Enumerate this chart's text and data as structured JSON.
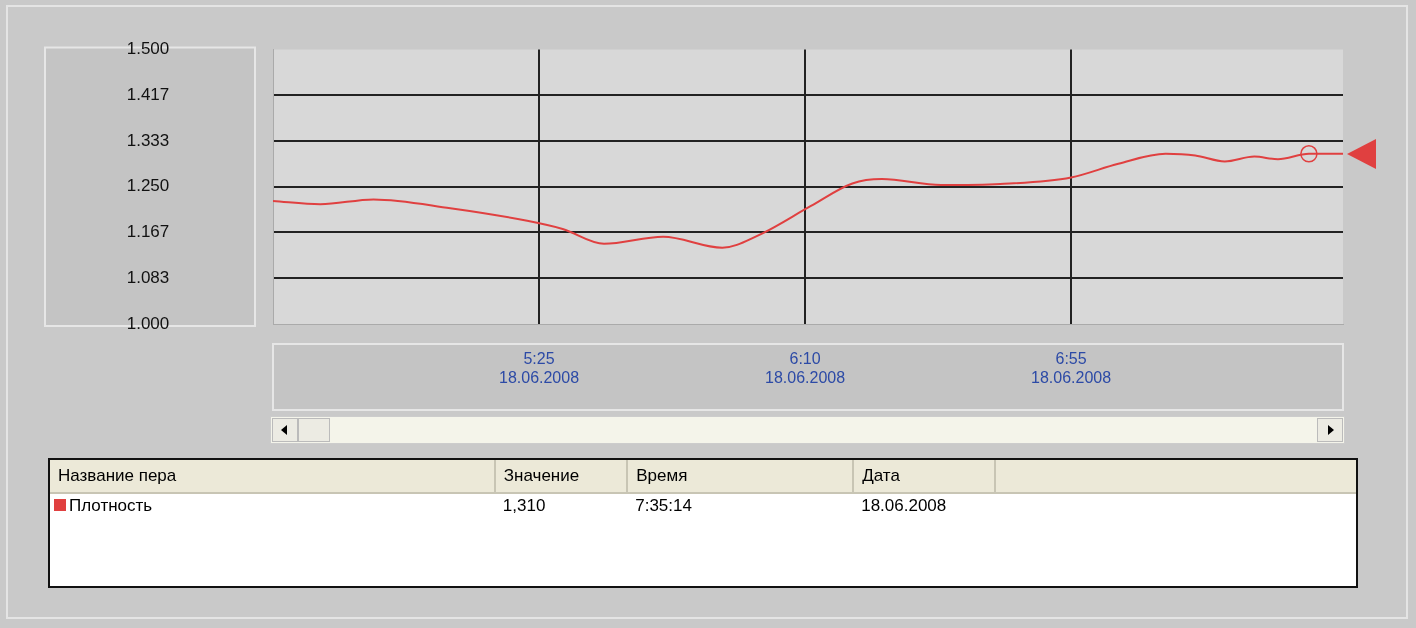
{
  "chart_data": {
    "type": "line",
    "x": [
      "2008-06-18T04:40",
      "2008-06-18T04:48",
      "2008-06-18T04:57",
      "2008-06-18T05:10",
      "2008-06-18T05:23",
      "2008-06-18T05:29",
      "2008-06-18T05:36",
      "2008-06-18T05:46",
      "2008-06-18T05:56",
      "2008-06-18T06:02",
      "2008-06-18T06:11",
      "2008-06-18T06:18",
      "2008-06-18T06:23",
      "2008-06-18T06:33",
      "2008-06-18T06:43",
      "2008-06-18T06:55",
      "2008-06-18T07:03",
      "2008-06-18T07:11",
      "2008-06-18T07:16",
      "2008-06-18T07:21",
      "2008-06-18T07:26",
      "2008-06-18T07:30",
      "2008-06-18T07:35:14",
      "2008-06-18T07:41"
    ],
    "series": [
      {
        "name": "Плотность",
        "color": "#e04040",
        "values": [
          1.224,
          1.218,
          1.227,
          1.211,
          1.188,
          1.173,
          1.146,
          1.159,
          1.139,
          1.161,
          1.215,
          1.256,
          1.264,
          1.253,
          1.255,
          1.267,
          1.292,
          1.31,
          1.307,
          1.296,
          1.305,
          1.3,
          1.31,
          1.31
        ]
      },
      {
        "type": "scatter",
        "color": "#e04040",
        "marker": "circle",
        "x": [
          "2008-06-18T07:35:14"
        ],
        "values": [
          1.31
        ]
      }
    ],
    "xlim": [
      "2008-06-18T04:40",
      "2008-06-18T07:41"
    ],
    "xticks": [
      {
        "value": "2008-06-18T05:25",
        "label": "5:25\n18.06.2008"
      },
      {
        "value": "2008-06-18T06:10",
        "label": "6:10\n18.06.2008"
      },
      {
        "value": "2008-06-18T06:55",
        "label": "6:55\n18.06.2008"
      }
    ],
    "ylim": [
      1,
      1.5
    ],
    "yticks": [
      {
        "value": 1,
        "label": "1.000"
      },
      {
        "value": 1.0833,
        "label": "1.083"
      },
      {
        "value": 1.1667,
        "label": "1.167"
      },
      {
        "value": 1.25,
        "label": "1.250"
      },
      {
        "value": 1.3333,
        "label": "1.333"
      },
      {
        "value": 1.4167,
        "label": "1.417"
      },
      {
        "value": 1.5,
        "label": "1.500"
      }
    ],
    "grid": true,
    "legend": "bottom",
    "marker": "none",
    "line_style": "solid",
    "annotations": [
      "Название пера",
      "Значение",
      "Время",
      "Дата",
      "1,310",
      "7:35:14",
      "18.06.2008"
    ]
  }
}
